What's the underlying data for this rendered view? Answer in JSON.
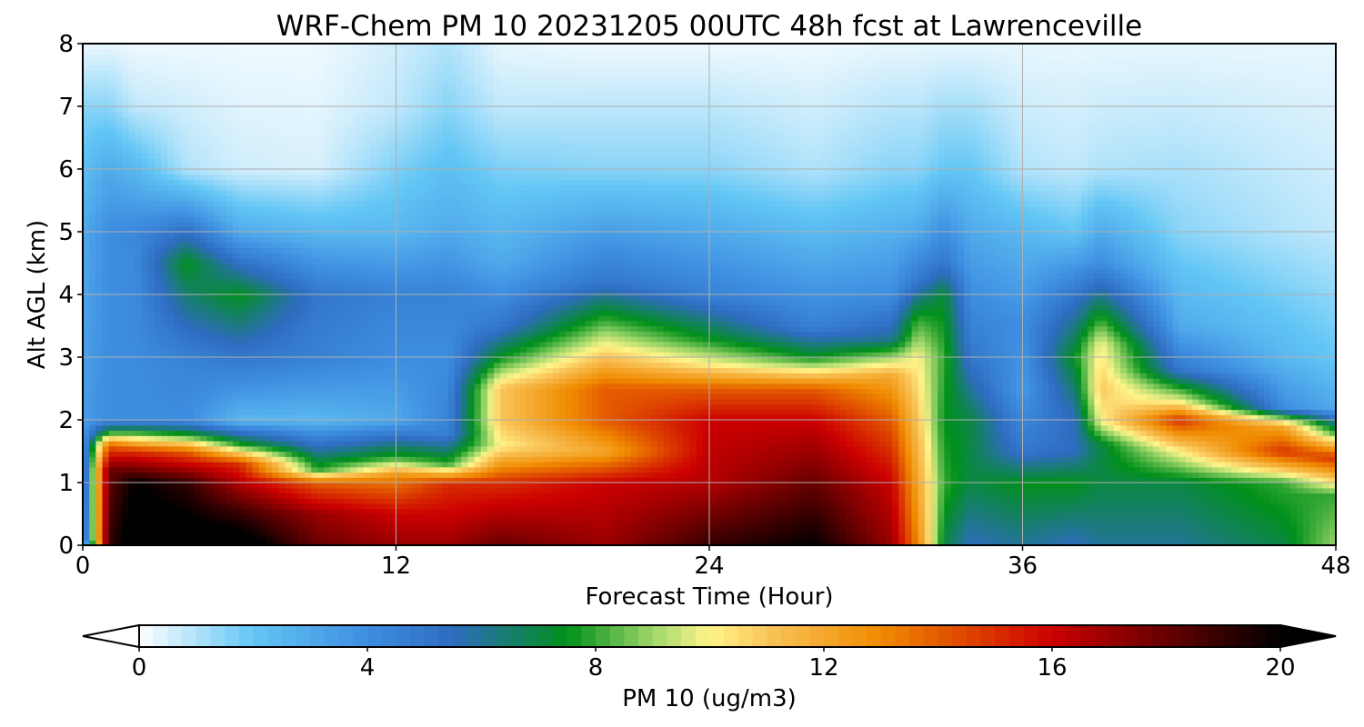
{
  "chart_data": {
    "type": "heatmap",
    "title": "WRF-Chem PM 10  20231205 00UTC 48h fcst at Lawrenceville",
    "xlabel": "Forecast Time (Hour)",
    "ylabel": "Alt AGL (km)",
    "xlim": [
      0,
      48
    ],
    "ylim": [
      0,
      8
    ],
    "xticks": [
      0,
      12,
      24,
      36,
      48
    ],
    "yticks": [
      0,
      1,
      2,
      3,
      4,
      5,
      6,
      7,
      8
    ],
    "grid": true,
    "colorbar": {
      "label": "PM 10  (ug/m3)",
      "range": [
        0,
        20
      ],
      "ticks": [
        0,
        4,
        8,
        12,
        16,
        20
      ],
      "extend": "both",
      "stops": [
        {
          "value": 0,
          "color": "#ffffff"
        },
        {
          "value": 2,
          "color": "#63c6f5"
        },
        {
          "value": 4,
          "color": "#3d8de0"
        },
        {
          "value": 5.5,
          "color": "#2e6cc0"
        },
        {
          "value": 7.5,
          "color": "#00901a"
        },
        {
          "value": 9,
          "color": "#9fd66a"
        },
        {
          "value": 10,
          "color": "#fff58a"
        },
        {
          "value": 11,
          "color": "#f9c55a"
        },
        {
          "value": 13,
          "color": "#f08a00"
        },
        {
          "value": 16,
          "color": "#cc0000"
        },
        {
          "value": 18,
          "color": "#660000"
        },
        {
          "value": 20,
          "color": "#000000"
        }
      ]
    },
    "field_description_hours": [
      0,
      1,
      2,
      4,
      6,
      9,
      12,
      14,
      16,
      20,
      24,
      28,
      31,
      32,
      33,
      34,
      36,
      38,
      39,
      42,
      46,
      48
    ],
    "field": [
      {
        "hour": 0,
        "profile": [
          [
            0,
            0.5
          ],
          [
            0.1,
            2.5
          ],
          [
            2,
            3.5
          ],
          [
            5,
            3
          ],
          [
            7,
            1.5
          ],
          [
            8,
            0.2
          ]
        ]
      },
      {
        "hour": 1,
        "profile": [
          [
            0,
            19
          ],
          [
            1.2,
            18
          ],
          [
            1.6,
            14
          ],
          [
            1.8,
            8
          ],
          [
            2,
            4
          ],
          [
            5,
            4
          ],
          [
            6,
            3
          ],
          [
            7,
            1.5
          ],
          [
            8,
            0.3
          ]
        ]
      },
      {
        "hour": 2,
        "profile": [
          [
            0,
            21
          ],
          [
            1,
            20
          ],
          [
            1.5,
            15
          ],
          [
            1.8,
            8
          ],
          [
            2,
            4
          ],
          [
            5,
            4.2
          ],
          [
            6,
            2.5
          ],
          [
            7,
            0.8
          ],
          [
            8,
            0.2
          ]
        ]
      },
      {
        "hour": 4,
        "profile": [
          [
            0,
            21
          ],
          [
            1,
            19
          ],
          [
            1.5,
            14
          ],
          [
            1.75,
            8
          ],
          [
            2,
            4
          ],
          [
            3,
            4.5
          ],
          [
            4.5,
            7.5
          ],
          [
            5.5,
            3
          ],
          [
            6,
            1
          ],
          [
            8,
            0.2
          ]
        ]
      },
      {
        "hour": 6,
        "profile": [
          [
            0,
            21
          ],
          [
            0.5,
            19
          ],
          [
            1.3,
            15
          ],
          [
            1.6,
            8
          ],
          [
            2,
            2.5
          ],
          [
            3,
            5
          ],
          [
            4,
            7.5
          ],
          [
            5,
            3
          ],
          [
            6,
            0.6
          ],
          [
            8,
            0.2
          ]
        ]
      },
      {
        "hour": 9,
        "profile": [
          [
            0,
            18
          ],
          [
            0.5,
            17
          ],
          [
            1,
            14
          ],
          [
            1.2,
            8
          ],
          [
            2,
            2.5
          ],
          [
            3,
            4.5
          ],
          [
            4,
            5
          ],
          [
            5,
            2.5
          ],
          [
            6,
            0.5
          ],
          [
            8,
            0.2
          ]
        ]
      },
      {
        "hour": 12,
        "profile": [
          [
            0,
            17
          ],
          [
            0.5,
            16
          ],
          [
            1.1,
            13
          ],
          [
            1.4,
            8
          ],
          [
            2,
            3
          ],
          [
            3,
            4
          ],
          [
            4,
            4.5
          ],
          [
            5,
            2.5
          ],
          [
            7,
            0.8
          ],
          [
            8,
            0.6
          ]
        ]
      },
      {
        "hour": 14,
        "profile": [
          [
            0,
            17
          ],
          [
            1,
            15
          ],
          [
            1.3,
            8
          ],
          [
            1.8,
            4.5
          ],
          [
            3,
            4
          ],
          [
            4,
            4.5
          ],
          [
            5,
            3
          ],
          [
            7,
            1.5
          ],
          [
            8,
            1
          ]
        ]
      },
      {
        "hour": 16,
        "profile": [
          [
            0,
            18
          ],
          [
            1,
            15
          ],
          [
            1.6,
            10
          ],
          [
            2,
            11
          ],
          [
            2.5,
            11
          ],
          [
            3,
            7.5
          ],
          [
            3.5,
            5
          ],
          [
            4.5,
            3
          ],
          [
            7,
            0.8
          ],
          [
            8,
            0.3
          ]
        ]
      },
      {
        "hour": 20,
        "profile": [
          [
            0,
            17
          ],
          [
            1,
            16
          ],
          [
            1.5,
            12
          ],
          [
            2,
            14
          ],
          [
            2.5,
            14
          ],
          [
            3.2,
            10
          ],
          [
            3.7,
            7.5
          ],
          [
            4.2,
            5
          ],
          [
            6,
            1.5
          ],
          [
            8,
            0.2
          ]
        ]
      },
      {
        "hour": 24,
        "profile": [
          [
            0,
            19
          ],
          [
            1,
            16.5
          ],
          [
            2,
            16
          ],
          [
            2.5,
            14
          ],
          [
            2.9,
            10
          ],
          [
            3.3,
            7.5
          ],
          [
            4,
            4.5
          ],
          [
            6,
            1.5
          ],
          [
            8,
            0.2
          ]
        ]
      },
      {
        "hour": 28,
        "profile": [
          [
            0,
            20
          ],
          [
            1,
            18
          ],
          [
            2,
            16
          ],
          [
            2.5,
            14
          ],
          [
            2.8,
            10
          ],
          [
            3,
            7.5
          ],
          [
            3.5,
            4.5
          ],
          [
            6,
            1
          ],
          [
            8,
            0.2
          ]
        ]
      },
      {
        "hour": 31,
        "profile": [
          [
            0,
            17
          ],
          [
            1,
            16
          ],
          [
            2,
            14
          ],
          [
            2.7,
            12
          ],
          [
            3,
            9
          ],
          [
            3.3,
            6
          ],
          [
            4,
            4
          ],
          [
            6,
            1.5
          ],
          [
            8,
            0.3
          ]
        ]
      },
      {
        "hour": 32,
        "profile": [
          [
            0,
            13
          ],
          [
            1,
            12
          ],
          [
            2,
            11
          ],
          [
            3,
            10
          ],
          [
            3.6,
            8
          ],
          [
            4.2,
            5
          ],
          [
            5,
            3
          ],
          [
            6,
            1.5
          ],
          [
            8,
            0.3
          ]
        ]
      },
      {
        "hour": 33,
        "profile": [
          [
            0,
            7
          ],
          [
            1,
            8
          ],
          [
            2,
            7.5
          ],
          [
            3,
            8
          ],
          [
            4,
            7.2
          ],
          [
            4.5,
            5
          ],
          [
            6,
            2
          ],
          [
            8,
            0.3
          ]
        ]
      },
      {
        "hour": 34,
        "profile": [
          [
            0,
            5.5
          ],
          [
            1,
            7
          ],
          [
            2,
            7
          ],
          [
            3,
            5
          ],
          [
            4,
            4
          ],
          [
            5,
            3
          ],
          [
            6,
            2
          ],
          [
            8,
            0.3
          ]
        ]
      },
      {
        "hour": 36,
        "profile": [
          [
            0,
            6
          ],
          [
            1,
            7.5
          ],
          [
            1.5,
            5
          ],
          [
            2.5,
            3.5
          ],
          [
            3.5,
            4
          ],
          [
            5,
            2.5
          ],
          [
            6,
            1
          ],
          [
            8,
            0.3
          ]
        ]
      },
      {
        "hour": 38,
        "profile": [
          [
            0,
            5.5
          ],
          [
            1,
            7.5
          ],
          [
            1.5,
            5.5
          ],
          [
            2,
            5.5
          ],
          [
            3,
            7.5
          ],
          [
            4,
            5
          ],
          [
            5,
            2
          ],
          [
            6,
            0.8
          ],
          [
            8,
            0.3
          ]
        ]
      },
      {
        "hour": 39,
        "profile": [
          [
            0,
            6
          ],
          [
            1,
            7
          ],
          [
            1.6,
            7
          ],
          [
            2,
            10
          ],
          [
            2.5,
            11
          ],
          [
            3.2,
            10
          ],
          [
            3.8,
            7
          ],
          [
            4.5,
            4
          ],
          [
            6,
            1
          ],
          [
            8,
            0.3
          ]
        ]
      },
      {
        "hour": 42,
        "profile": [
          [
            0,
            6
          ],
          [
            1,
            7
          ],
          [
            1.5,
            10
          ],
          [
            2,
            15
          ],
          [
            2.3,
            10
          ],
          [
            2.8,
            5
          ],
          [
            3.5,
            3
          ],
          [
            5,
            1.5
          ],
          [
            8,
            0.3
          ]
        ]
      },
      {
        "hour": 46,
        "profile": [
          [
            0,
            7
          ],
          [
            1,
            8
          ],
          [
            1.5,
            15
          ],
          [
            1.9,
            12
          ],
          [
            2.2,
            4
          ],
          [
            3,
            2.5
          ],
          [
            5,
            1
          ],
          [
            8,
            0.3
          ]
        ]
      },
      {
        "hour": 48,
        "profile": [
          [
            0,
            9
          ],
          [
            0.8,
            8
          ],
          [
            1.4,
            15
          ],
          [
            1.8,
            8
          ],
          [
            2.2,
            3
          ],
          [
            3,
            2
          ],
          [
            5,
            0.8
          ],
          [
            8,
            0.3
          ]
        ]
      }
    ]
  }
}
